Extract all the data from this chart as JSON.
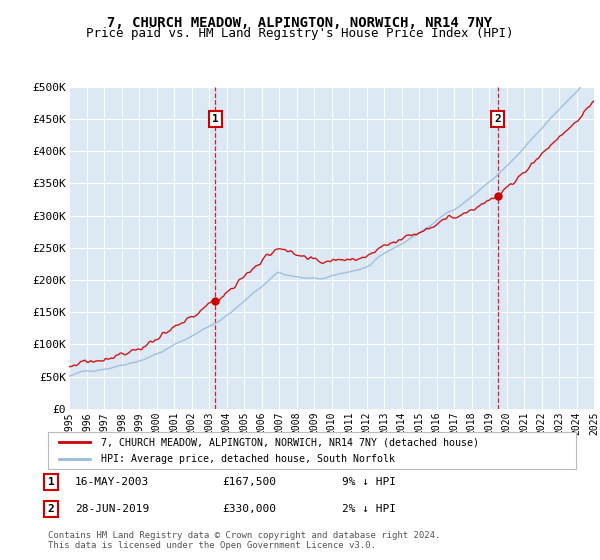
{
  "title": "7, CHURCH MEADOW, ALPINGTON, NORWICH, NR14 7NY",
  "subtitle": "Price paid vs. HM Land Registry's House Price Index (HPI)",
  "title_fontsize": 10,
  "subtitle_fontsize": 9,
  "plot_bg_color": "#dce9f5",
  "ylabel_ticks": [
    "£0",
    "£50K",
    "£100K",
    "£150K",
    "£200K",
    "£250K",
    "£300K",
    "£350K",
    "£400K",
    "£450K",
    "£500K"
  ],
  "ytick_values": [
    0,
    50000,
    100000,
    150000,
    200000,
    250000,
    300000,
    350000,
    400000,
    450000,
    500000
  ],
  "ylim": [
    0,
    500000
  ],
  "x_start_year": 1995,
  "x_end_year": 2025,
  "purchase1_year": 2003.37,
  "purchase1_price": 167500,
  "purchase2_year": 2019.49,
  "purchase2_price": 330000,
  "legend_line1": "7, CHURCH MEADOW, ALPINGTON, NORWICH, NR14 7NY (detached house)",
  "legend_line2": "HPI: Average price, detached house, South Norfolk",
  "annotation1_label": "1",
  "annotation1_date": "16-MAY-2003",
  "annotation1_price": "£167,500",
  "annotation1_hpi": "9% ↓ HPI",
  "annotation2_label": "2",
  "annotation2_date": "28-JUN-2019",
  "annotation2_price": "£330,000",
  "annotation2_hpi": "2% ↓ HPI",
  "footer": "Contains HM Land Registry data © Crown copyright and database right 2024.\nThis data is licensed under the Open Government Licence v3.0.",
  "line_color_property": "#cc0000",
  "line_color_hpi": "#99bbdd",
  "vline_color": "#cc0000"
}
